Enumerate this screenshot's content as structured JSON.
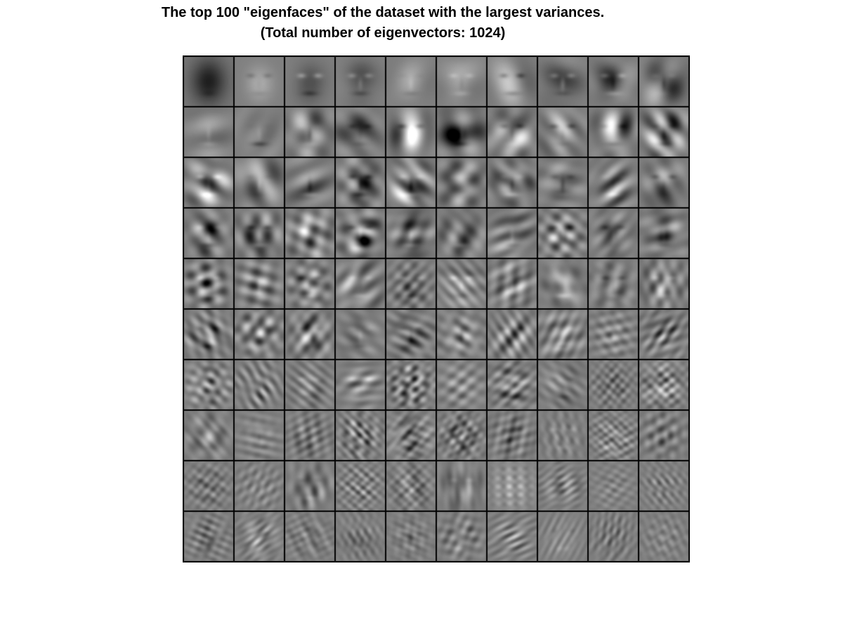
{
  "figure": {
    "title_line1": "The top 100 \"eigenfaces\" of the dataset with the largest variances.",
    "title_line2": "(Total number of eigenvectors: 1024)"
  },
  "mosaic": {
    "rows": 10,
    "cols": 10,
    "tile_count": 100,
    "tile_border_color": "#000000",
    "palette": "grayscale"
  }
}
